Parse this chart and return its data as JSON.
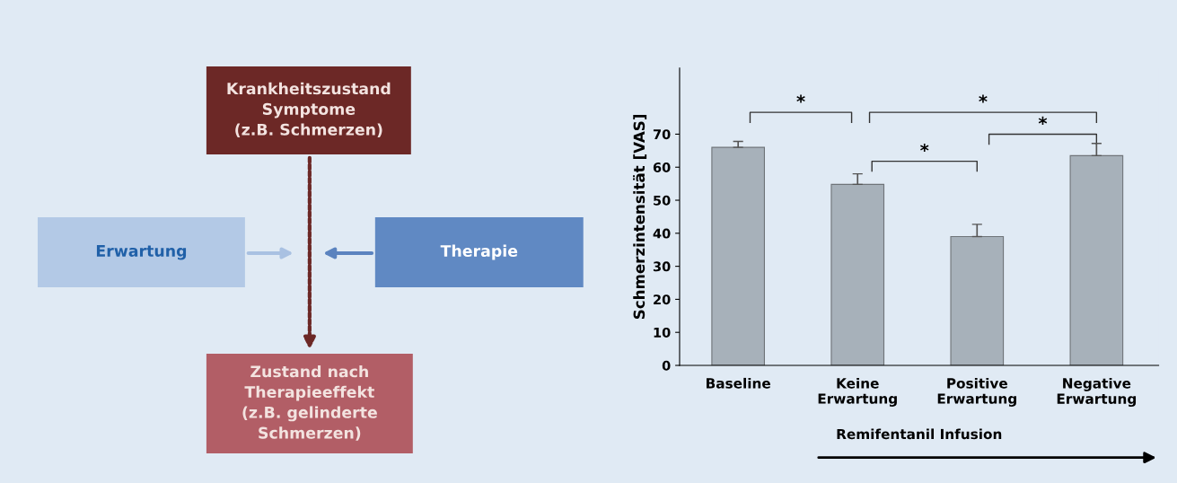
{
  "chart_data": [
    {
      "type": "other",
      "annotations": [
        "Krankheitszustand\nSymptome\n(z.B. Schmerzen)",
        "Erwartung",
        "Therapie",
        "Zustand nach\nTherapieeffekt\n(z.B. gelinderte\nSchmerzen)"
      ],
      "colors": [
        "#6c2826",
        "#b3c9e6",
        "#6089c3",
        "#b25e66"
      ]
    },
    {
      "type": "bar",
      "ylabel": "Schmerzintensität [VAS]",
      "categories": [
        "Baseline",
        "Keine\nErwartung",
        "Positive\nErwartung",
        "Negative\nErwartung"
      ],
      "values": [
        66,
        54.8,
        39,
        63.5
      ],
      "errors": [
        [
          66,
          67.8
        ],
        [
          54.8,
          58
        ],
        [
          39,
          42.7
        ],
        [
          63.5,
          67.2
        ]
      ],
      "color": "#a7b1ba",
      "ylim": [
        0,
        90
      ],
      "yticks": [
        0,
        10,
        20,
        30,
        40,
        50,
        60,
        70
      ],
      "annotations": [
        "*",
        "*",
        "*",
        "*",
        "Remifentanil Infusion"
      ]
    }
  ]
}
